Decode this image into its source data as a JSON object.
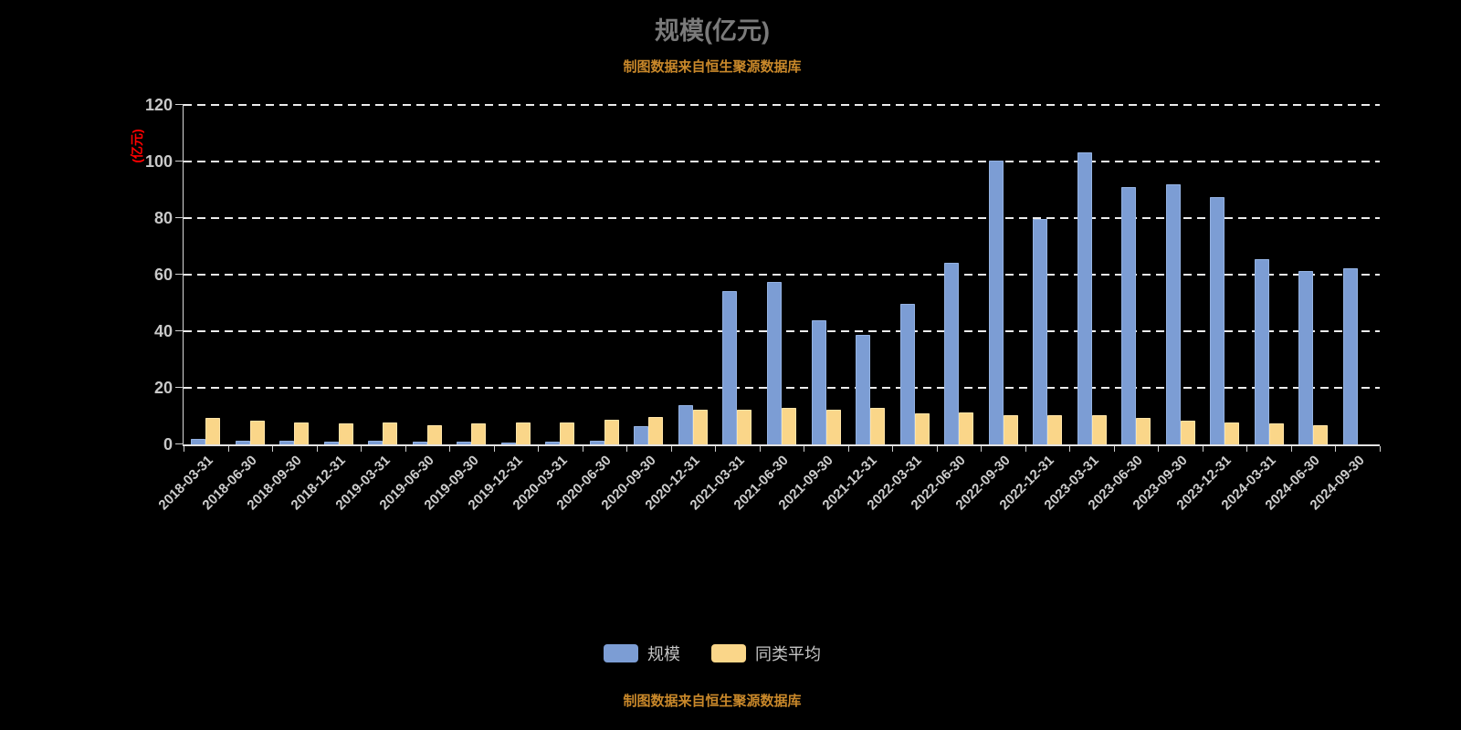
{
  "title": "规模(亿元)",
  "source_note": "制图数据来自恒生聚源数据库",
  "y_axis_unit": "(亿元)",
  "colors": {
    "scale_bar": "#7c9dd4",
    "scale_bar_border": "#94b2e2",
    "average_bar": "#fad689",
    "average_bar_border": "#ffe4a8",
    "unit_label": "#ff0000",
    "source_note": "#c9882a",
    "title": "#7a7a7a"
  },
  "chart_data": {
    "type": "bar",
    "title": "规模(亿元)",
    "ylabel": "(亿元)",
    "ylim": [
      0,
      120
    ],
    "yticks": [
      0,
      20,
      40,
      60,
      80,
      100,
      120
    ],
    "grid": "dashed-horizontal",
    "legend_position": "bottom",
    "categories": [
      "2018-03-31",
      "2018-06-30",
      "2018-09-30",
      "2018-12-31",
      "2019-03-31",
      "2019-06-30",
      "2019-09-30",
      "2019-12-31",
      "2020-03-31",
      "2020-06-30",
      "2020-09-30",
      "2020-12-31",
      "2021-03-31",
      "2021-06-30",
      "2021-09-30",
      "2021-12-31",
      "2022-03-31",
      "2022-06-30",
      "2022-09-30",
      "2022-12-31",
      "2023-03-31",
      "2023-06-30",
      "2023-09-30",
      "2023-12-31",
      "2024-03-31",
      "2024-06-30",
      "2024-09-30"
    ],
    "series": [
      {
        "name": "规模",
        "color": "#7c9dd4",
        "border": "#94b2e2",
        "values": [
          1.5,
          1.0,
          1.0,
          0.6,
          0.9,
          0.5,
          0.5,
          0.4,
          0.5,
          1.0,
          6.0,
          13.5,
          54.0,
          57.0,
          43.5,
          38.5,
          49.5,
          64.0,
          100.0,
          79.5,
          103.0,
          90.5,
          91.5,
          87.0,
          65.0,
          61.0,
          62.0
        ]
      },
      {
        "name": "同类平均",
        "color": "#fad689",
        "border": "#ffe4a8",
        "values": [
          9.0,
          8.0,
          7.5,
          7.0,
          7.5,
          6.5,
          7.0,
          7.5,
          7.5,
          8.5,
          9.5,
          12.0,
          12.0,
          12.5,
          12.0,
          12.5,
          10.5,
          11.0,
          10.0,
          10.0,
          10.0,
          9.0,
          8.0,
          7.5,
          7.0,
          6.5,
          0
        ]
      }
    ]
  }
}
